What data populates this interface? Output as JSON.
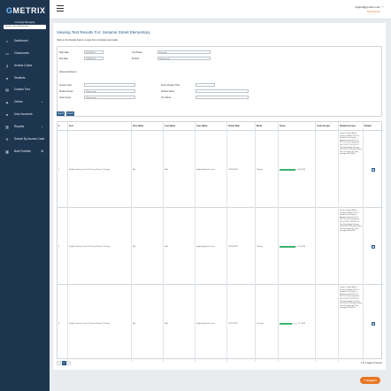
{
  "app": {
    "logo_prefix": "G",
    "logo_rest": "METRIX"
  },
  "sidebar": {
    "current_label": "Currently Managing",
    "current_value": "Sesame Street Elementary",
    "items": [
      {
        "label": "Dashboard",
        "icon": "home-icon"
      },
      {
        "label": "Classrooms",
        "icon": "classroom-icon"
      },
      {
        "label": "Access Codes",
        "icon": "key-icon"
      },
      {
        "label": "Students",
        "icon": "student-icon"
      },
      {
        "label": "Custom Test",
        "icon": "custom-test-icon"
      },
      {
        "label": "Orders",
        "icon": "cart-icon"
      },
      {
        "label": "User Accounts",
        "icon": "user-icon"
      },
      {
        "label": "Reports",
        "icon": "reports-icon"
      },
      {
        "label": "Search By Access Code",
        "icon": "search-icon"
      },
      {
        "label": "Bulk Portfolio",
        "icon": "portfolio-icon"
      }
    ]
  },
  "header": {
    "email": "bigbird@gmetrix.com",
    "subtext": "Administrator"
  },
  "page": {
    "title": "Viewing Test Results For: Sesame Street Elementary",
    "instructions": "Click on the Details button to view their complete test results."
  },
  "filters": {
    "start_date_label": "Start Date",
    "start_date_value": "07/24/2022",
    "end_date_label": "End Date",
    "end_date_value": "10/28/2022",
    "test_status_label": "Test Status",
    "test_status_value": "Finished",
    "product_label": "Product",
    "product_value": "Choose one",
    "advanced_label": "Advanced Filters",
    "access_code_label": "Access Code",
    "score_greater_label": "Score Greater Than:",
    "student_group_label": "Student Group",
    "student_group_value": "Choose one",
    "student_name_label": "Student Name",
    "code_group_label": "Code Group",
    "code_group_value": "Choose one",
    "test_name_label": "Test Name",
    "search_btn": "Search",
    "export_btn": "Export"
  },
  "table": {
    "headers": [
      "#",
      "Test",
      "First Name",
      "Last Name",
      "User Name",
      "Finish Date",
      "Mode",
      "Score",
      "Code Groups",
      "Student Groups",
      "Details"
    ],
    "rows": [
      {
        "num": "1",
        "test": "Digital Literacy Level 1 Practice Exam 1 Testing",
        "first": "Big",
        "last": "Bird",
        "user": "bigbird@gmetrix.com",
        "date": "10/25/2022",
        "mode": "Testing",
        "score_text": "90 (100)",
        "score_pct": 0.9,
        "code_groups": "",
        "student_groups": "Group 1 Digital Media Group 1 Holiday Test 1st Period Test Group for Assign Imported List 27-2017 1 List test Imported List 27-2017 12/23-2017 Test Prep Digital Literacy fall 2022 IC3 Students Entry new classroom for Tony managers16 DEMO"
      },
      {
        "num": "2",
        "test": "Digital Literacy Level 1 Practice Exam 1 Testing",
        "first": "Big",
        "last": "Bird",
        "user": "bigbird@gmetrix.com",
        "date": "10/25/2022",
        "mode": "Testing",
        "score_text": "90 (100)",
        "score_pct": 0.9,
        "code_groups": "",
        "student_groups": "Group 1 Digital Media Group 1 Holiday Test 1st Period Test Group for Assign Imported List 27-2017 1 List test Imported List 27-2017 12/23-2017 Test Prep Digital Literacy fall 2022 IC3 Students Entry new classroom for Tony managers16 DEMO"
      },
      {
        "num": "3",
        "test": "Digital Literacy Level 1 Practice Exam 1 Testing",
        "first": "Big",
        "last": "Bird",
        "user": "bigbird@gmetrix.com",
        "date": "10/17/2022",
        "mode": "Training",
        "score_text": "71 (100)",
        "score_pct": 0.71,
        "code_groups": "",
        "student_groups": "Group 1 Digital Media Group 1 Holiday Test 1st Period Test Group for Assign Imported List 27-2017 1 List test Imported List 27-2017 12/23-2017 Test Prep Digital Literacy fall 2022 IC3 Students Entry new classroom for Tony managers16 DEMO"
      }
    ]
  },
  "pager": {
    "prev": "«",
    "current": "1",
    "next": "»",
    "info": "1 of 1 pages (3 items)"
  },
  "support": {
    "label": "Support"
  }
}
